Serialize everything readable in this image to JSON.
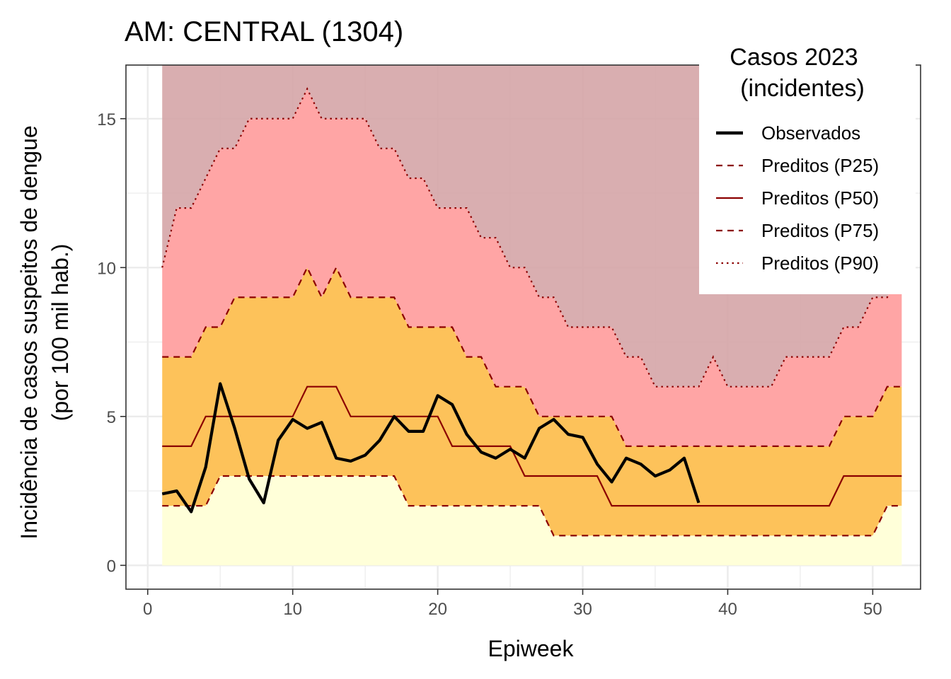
{
  "chart_data": {
    "type": "line",
    "title": "AM: CENTRAL (1304)",
    "xlabel": "Epiweek",
    "ylabel_line1": "Incidência de casos suspeitos de dengue",
    "ylabel_line2": "(por 100 mil hab.)",
    "xlim": [
      -1.5,
      53.3
    ],
    "ylim": [
      -0.8,
      16.8
    ],
    "x_ticks": [
      0,
      10,
      20,
      30,
      40,
      50
    ],
    "y_ticks": [
      0,
      5,
      10,
      15
    ],
    "x_tick_labels": [
      "0",
      "10",
      "20",
      "30",
      "40",
      "50"
    ],
    "y_tick_labels": [
      "0",
      "5",
      "10",
      "15"
    ],
    "grid": true,
    "legend": {
      "position": "top-right",
      "title_line1": "Casos 2023",
      "title_line2": "(incidentes)",
      "entries": [
        {
          "key": "observed",
          "label": "Observados"
        },
        {
          "key": "p25",
          "label": "Preditos (P25)"
        },
        {
          "key": "p50",
          "label": "Preditos (P50)"
        },
        {
          "key": "p75",
          "label": "Preditos (P75)"
        },
        {
          "key": "p90",
          "label": "Preditos (P90)"
        }
      ]
    },
    "colors": {
      "observed": "#000000",
      "quantile_line": "#8b0000",
      "band_below_p25": "#ffffd9",
      "band_p25_p75": "#fdc25a",
      "band_p75_p90": "#ffa5a5",
      "band_above_p90": "#d5a5a7"
    },
    "weeks": [
      1,
      2,
      3,
      4,
      5,
      6,
      7,
      8,
      9,
      10,
      11,
      12,
      13,
      14,
      15,
      16,
      17,
      18,
      19,
      20,
      21,
      22,
      23,
      24,
      25,
      26,
      27,
      28,
      29,
      30,
      31,
      32,
      33,
      34,
      35,
      36,
      37,
      38,
      39,
      40,
      41,
      42,
      43,
      44,
      45,
      46,
      47,
      48,
      49,
      50,
      51,
      52
    ],
    "series": [
      {
        "name": "Preditos (P25)",
        "key": "p25",
        "values": [
          2,
          2,
          2,
          2,
          3,
          3,
          3,
          3,
          3,
          3,
          3,
          3,
          3,
          3,
          3,
          3,
          3,
          2,
          2,
          2,
          2,
          2,
          2,
          2,
          2,
          2,
          2,
          1,
          1,
          1,
          1,
          1,
          1,
          1,
          1,
          1,
          1,
          1,
          1,
          1,
          1,
          1,
          1,
          1,
          1,
          1,
          1,
          1,
          1,
          1,
          2,
          2
        ]
      },
      {
        "name": "Preditos (P50)",
        "key": "p50",
        "values": [
          4,
          4,
          4,
          5,
          5,
          5,
          5,
          5,
          5,
          5,
          6,
          6,
          6,
          5,
          5,
          5,
          5,
          5,
          5,
          5,
          4,
          4,
          4,
          4,
          4,
          3,
          3,
          3,
          3,
          3,
          3,
          2,
          2,
          2,
          2,
          2,
          2,
          2,
          2,
          2,
          2,
          2,
          2,
          2,
          2,
          2,
          2,
          3,
          3,
          3,
          3,
          3
        ]
      },
      {
        "name": "Preditos (P75)",
        "key": "p75",
        "values": [
          7,
          7,
          7,
          8,
          8,
          9,
          9,
          9,
          9,
          9,
          10,
          9,
          10,
          9,
          9,
          9,
          9,
          8,
          8,
          8,
          8,
          7,
          7,
          6,
          6,
          6,
          5,
          5,
          5,
          5,
          5,
          5,
          4,
          4,
          4,
          4,
          4,
          4,
          4,
          4,
          4,
          4,
          4,
          4,
          4,
          4,
          4,
          5,
          5,
          5,
          6,
          6
        ]
      },
      {
        "name": "Preditos (P90)",
        "key": "p90",
        "values": [
          10,
          12,
          12,
          13,
          14,
          14,
          15,
          15,
          15,
          15,
          16,
          15,
          15,
          15,
          15,
          14,
          14,
          13,
          13,
          12,
          12,
          12,
          11,
          11,
          10,
          10,
          9,
          9,
          8,
          8,
          8,
          8,
          7,
          7,
          6,
          6,
          6,
          6,
          7,
          6,
          6,
          6,
          6,
          7,
          7,
          7,
          7,
          8,
          8,
          9,
          9,
          10
        ]
      },
      {
        "name": "Observados",
        "key": "observed",
        "x": [
          1,
          2,
          3,
          4,
          5,
          6,
          7,
          8,
          9,
          10,
          11,
          12,
          13,
          14,
          15,
          16,
          17,
          18,
          19,
          20,
          21,
          22,
          23,
          24,
          25,
          26,
          27,
          28,
          29,
          30,
          31,
          32,
          33,
          34,
          35,
          36,
          37,
          38
        ],
        "values": [
          2.4,
          2.5,
          1.8,
          3.3,
          6.1,
          4.6,
          2.9,
          2.1,
          4.2,
          4.9,
          4.6,
          4.8,
          3.6,
          3.5,
          3.7,
          4.2,
          5.0,
          4.5,
          4.5,
          5.7,
          5.4,
          4.4,
          3.8,
          3.6,
          3.9,
          3.6,
          4.6,
          4.9,
          4.4,
          4.3,
          3.4,
          2.8,
          3.6,
          3.4,
          3.0,
          3.2,
          3.6,
          2.1
        ]
      }
    ]
  }
}
